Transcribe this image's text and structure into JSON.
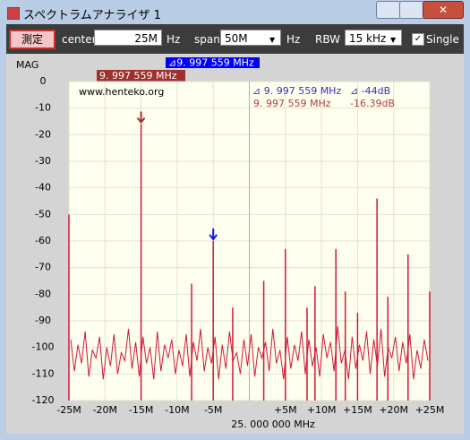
{
  "window": {
    "title": "スペクトラムアナライザ 1"
  },
  "toolbar": {
    "measure_button": "測定",
    "center_label": "center",
    "center_value": "25M",
    "center_unit": "Hz",
    "span_label": "span",
    "span_value": "50M",
    "span_unit": "Hz",
    "rbw_label": "RBW",
    "rbw_value": "15 kHz",
    "single_label": "Single"
  },
  "header": {
    "y_label": "MAG",
    "marker_delta": "⊿9. 997 559 MHz",
    "marker_freq": "9. 997 559 MHz"
  },
  "plot": {
    "watermark": "www.henteko.org",
    "delta_freq": "⊿ 9. 997 559 MHz",
    "delta_level": "⊿ -44dB",
    "marker_freq": "9. 997 559 MHz",
    "marker_level": "-16.39dB",
    "center_freq": "25. 000 000 MHz"
  },
  "chart_data": {
    "type": "spectrum",
    "color": "#d01838",
    "grid": true,
    "xlim": [
      -25,
      25
    ],
    "ylim": [
      -120,
      0
    ],
    "yticks": [
      0,
      -10,
      -20,
      -30,
      -40,
      -50,
      -60,
      -70,
      -80,
      -90,
      -100,
      -110,
      -120
    ],
    "xticks": [
      {
        "value": -25,
        "label": "-25M"
      },
      {
        "value": -20,
        "label": "-20M"
      },
      {
        "value": -15,
        "label": "-15M"
      },
      {
        "value": -10,
        "label": "-10M"
      },
      {
        "value": -5,
        "label": "-5M"
      },
      {
        "value": 5,
        "label": "+5M"
      },
      {
        "value": 10,
        "label": "+10M"
      },
      {
        "value": 15,
        "label": "+15M"
      },
      {
        "value": 20,
        "label": "+20M"
      },
      {
        "value": 25,
        "label": "+25M"
      }
    ],
    "noise": {
      "x": [
        -24.75,
        -24.25,
        -23.75,
        -23.25,
        -22.75,
        -22.25,
        -21.75,
        -21.25,
        -20.75,
        -20.25,
        -19.75,
        -19.25,
        -18.75,
        -18.25,
        -17.75,
        -17.25,
        -16.75,
        -16.25,
        -15.75,
        -15.25,
        -14.75,
        -14.25,
        -13.75,
        -13.25,
        -12.75,
        -12.25,
        -11.75,
        -11.25,
        -10.75,
        -10.25,
        -9.75,
        -9.25,
        -8.75,
        -8.25,
        -7.75,
        -7.25,
        -6.75,
        -6.25,
        -5.75,
        -5.25,
        -4.75,
        -4.25,
        -3.75,
        -3.25,
        -2.75,
        -2.25,
        -1.75,
        -1.25,
        -0.75,
        -0.25,
        0.25,
        0.75,
        1.25,
        1.75,
        2.25,
        2.75,
        3.25,
        3.75,
        4.25,
        4.75,
        5.25,
        5.75,
        6.25,
        6.75,
        7.25,
        7.75,
        8.25,
        8.75,
        9.25,
        9.75,
        10.25,
        10.75,
        11.25,
        11.75,
        12.25,
        12.75,
        13.25,
        13.75,
        14.25,
        14.75,
        15.25,
        15.75,
        16.25,
        16.75,
        17.25,
        17.75,
        18.25,
        18.75,
        19.25,
        19.75,
        20.25,
        20.75,
        21.25,
        21.75,
        22.25,
        22.75,
        23.25,
        23.75,
        24.25,
        24.75
      ],
      "values": [
        -97,
        -109,
        -99,
        -106,
        -94,
        -111,
        -101,
        -104,
        -96,
        -112,
        -100,
        -107,
        -95,
        -110,
        -102,
        -105,
        -93,
        -108,
        -98,
        -111,
        -96,
        -106,
        -100,
        -112,
        -94,
        -109,
        -99,
        -104,
        -97,
        -110,
        -101,
        -107,
        -95,
        -111,
        -98,
        -105,
        -93,
        -109,
        -100,
        -106,
        -96,
        -112,
        -99,
        -108,
        -94,
        -105,
        -102,
        -110,
        -97,
        -107,
        -95,
        -111,
        -100,
        -104,
        -98,
        -109,
        -93,
        -106,
        -101,
        -112,
        -96,
        -108,
        -99,
        -105,
        -94,
        -110,
        -97,
        -107,
        -100,
        -111,
        -95,
        -104,
        -98,
        -109,
        -92,
        -106,
        -101,
        -112,
        -96,
        -108,
        -99,
        -105,
        -94,
        -110,
        -97,
        -107,
        -93,
        -111,
        -100,
        -104,
        -96,
        -109,
        -98,
        -106,
        -95,
        -112,
        -101,
        -108,
        -97,
        -105
      ]
    },
    "peaks": {
      "x": [
        -25,
        -15,
        -8,
        -5,
        -2.3,
        2,
        5,
        8,
        9.1,
        12,
        13.3,
        15,
        17.7,
        19.2,
        22,
        25
      ],
      "values": [
        -50,
        -16,
        -76,
        -60,
        -85,
        -75,
        -63,
        -85,
        -77,
        -63,
        -79,
        -87,
        -44,
        -81,
        -65,
        -79
      ]
    },
    "markers": {
      "colors": [
        "#a03030",
        "#1010ff"
      ]
    }
  }
}
